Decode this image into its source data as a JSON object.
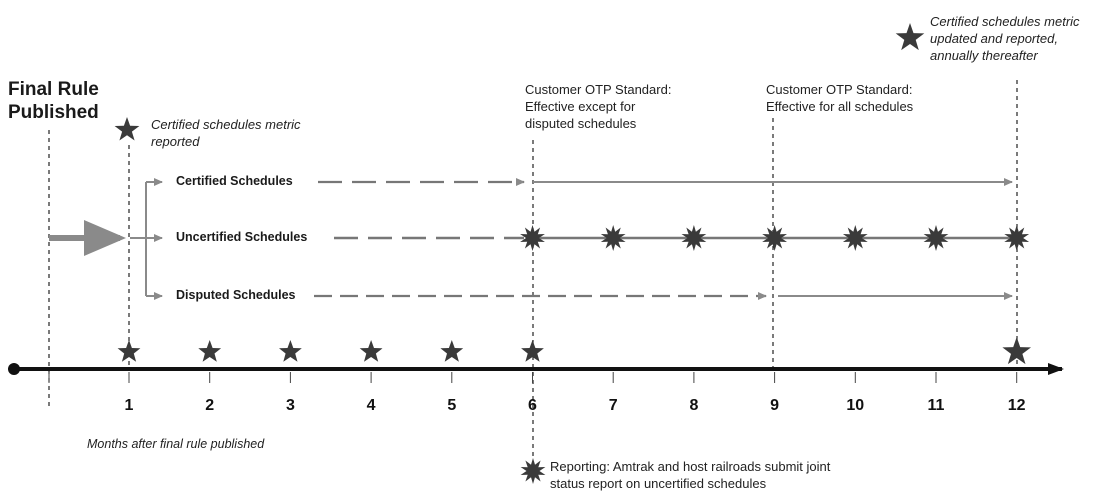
{
  "title": "Final Rule Published",
  "title_lines": [
    "Final Rule",
    "Published"
  ],
  "x_caption": "Months after final rule published",
  "months": [
    "1",
    "2",
    "3",
    "4",
    "5",
    "6",
    "7",
    "8",
    "9",
    "10",
    "11",
    "12"
  ],
  "tracks": [
    {
      "label": "Certified Schedules"
    },
    {
      "label": "Uncertified Schedules"
    },
    {
      "label": "Disputed Schedules"
    }
  ],
  "notes": {
    "metric_reported": [
      "Certified schedules metric",
      "reported"
    ],
    "standard_6": [
      "Customer OTP Standard:",
      "Effective except for",
      "disputed schedules"
    ],
    "standard_9": [
      "Customer OTP Standard:",
      "Effective for all schedules"
    ],
    "metric_annual": [
      "Certified schedules metric",
      "updated and reported,",
      "annually thereafter"
    ],
    "reporting": [
      "Reporting: Amtrak and host railroads submit joint",
      "status report on uncertified schedules"
    ]
  },
  "colors": {
    "axis": "#111111",
    "star": "#3a3a3a",
    "arrow": "#8a8a8a",
    "dash": "#777777",
    "vline": "#222222"
  }
}
